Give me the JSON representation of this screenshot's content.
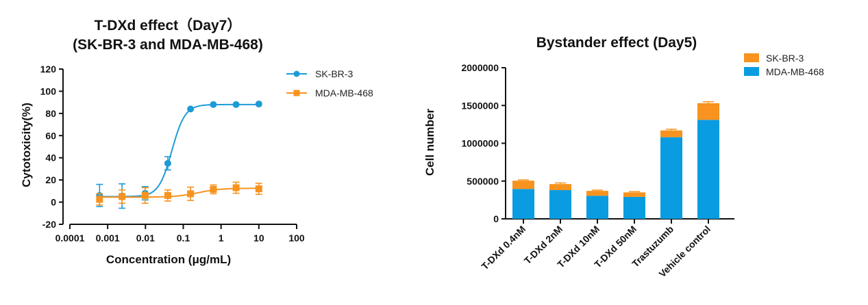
{
  "colors": {
    "blue": "#1E9BD7",
    "orange": "#F7931E",
    "stacked_blue": "#0A9CE0",
    "stacked_orange": "#F7931E",
    "axis": "#111111"
  },
  "chart_data": [
    {
      "type": "scatter",
      "title_lines": [
        "T-DXd effect（Day7）",
        "(SK-BR-3 and MDA-MB-468)"
      ],
      "xlabel": "Concentration (μg/mL)",
      "ylabel": "Cytotoxicity(%)",
      "x_scale": "log",
      "xlim": [
        0.0001,
        100
      ],
      "ylim": [
        -20,
        120
      ],
      "x_ticks": [
        0.0001,
        0.001,
        0.01,
        0.1,
        1,
        10,
        100
      ],
      "x_tick_labels": [
        "0.0001",
        "0.001",
        "0.01",
        "0.1",
        "1",
        "10",
        "100"
      ],
      "y_ticks": [
        -20,
        0,
        20,
        40,
        60,
        80,
        100,
        120
      ],
      "y_tick_labels": [
        "-20",
        "0",
        "20",
        "40",
        "60",
        "80",
        "100",
        "120"
      ],
      "legend_position": "top-right",
      "series": [
        {
          "name": "SK-BR-3",
          "marker": "circle",
          "color": "#1E9BD7",
          "x": [
            0.00061,
            0.0024,
            0.0098,
            0.039,
            0.156,
            0.625,
            2.5,
            10
          ],
          "y": [
            6,
            5.5,
            8,
            35,
            84,
            88,
            88,
            88.5
          ],
          "err": [
            10,
            11,
            6,
            6,
            1,
            0.5,
            0.5,
            0.5
          ],
          "fit": {
            "bottom": 5,
            "top": 88,
            "ec50": 0.05,
            "hill": 2.5
          }
        },
        {
          "name": "MDA-MB-468",
          "marker": "square",
          "color": "#F7931E",
          "x": [
            0.00061,
            0.0024,
            0.0098,
            0.039,
            0.156,
            0.625,
            2.5,
            10
          ],
          "y": [
            2.5,
            5,
            6,
            6,
            7.5,
            11.5,
            13,
            12
          ],
          "err": [
            5,
            6,
            7,
            5,
            6,
            4,
            5,
            5
          ],
          "fit": {
            "bottom": 4.5,
            "top": 12.5,
            "ec50": 0.25,
            "hill": 1.5
          }
        }
      ]
    },
    {
      "type": "bar",
      "stacked": true,
      "title": "Bystander effect (Day5)",
      "xlabel": "",
      "ylabel": "Cell number",
      "ylim": [
        0,
        2000000
      ],
      "y_ticks": [
        0,
        500000,
        1000000,
        1500000,
        2000000
      ],
      "y_tick_labels": [
        "0",
        "500000",
        "1000000",
        "1500000",
        "2000000"
      ],
      "categories": [
        "T-DXd 0.4nM",
        "T-DXd 2nM",
        "T-DXd 10nM",
        "T-DXd 50nM",
        "Trastuzumb",
        "Vehicle control"
      ],
      "legend_position": "top-right",
      "series": [
        {
          "name": "MDA-MB-468",
          "color": "#0A9CE0",
          "values": [
            395000,
            380000,
            305000,
            290000,
            1080000,
            1310000
          ]
        },
        {
          "name": "SK-BR-3",
          "color": "#F7931E",
          "values": [
            110000,
            80000,
            65000,
            60000,
            90000,
            220000
          ],
          "err": [
            10000,
            15000,
            10000,
            10000,
            15000,
            20000
          ]
        }
      ]
    }
  ]
}
